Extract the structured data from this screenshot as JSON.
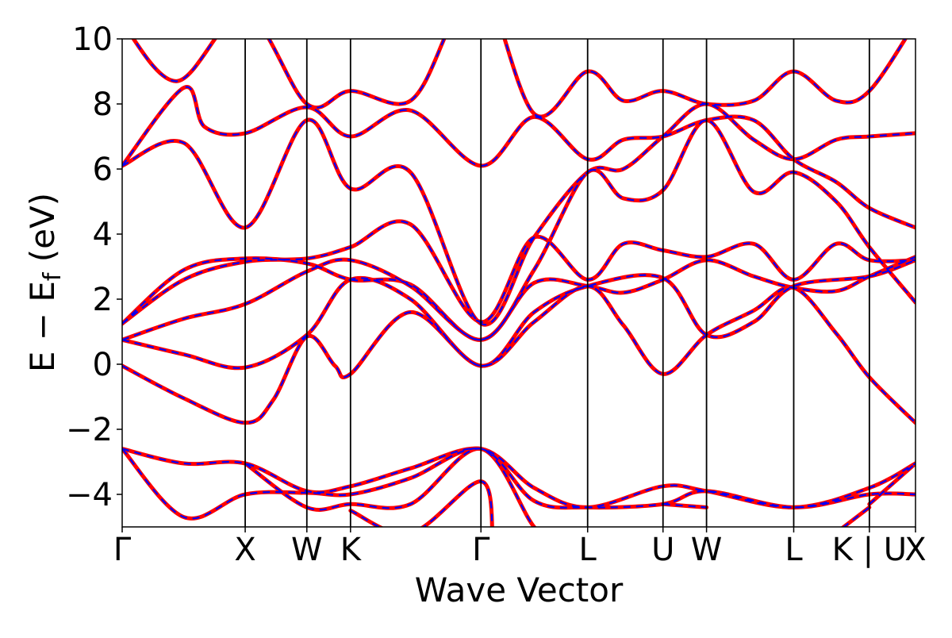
{
  "chart_data": {
    "type": "line",
    "xlabel": "Wave Vector",
    "ylabel": "E − E",
    "ylabel_sub": "f",
    "ylabel_unit": " (eV)",
    "ylim": [
      -5,
      10
    ],
    "yticks": [
      10,
      8,
      6,
      4,
      2,
      0,
      -2,
      -4
    ],
    "ytick_labels": [
      "10",
      "8",
      "6",
      "4",
      "2",
      "0",
      "−2",
      "−4"
    ],
    "path_length": 5.778,
    "kpoints": [
      {
        "label": "Γ",
        "pos": 0.0
      },
      {
        "label": "X",
        "pos": 0.896
      },
      {
        "label": "W",
        "pos": 1.345
      },
      {
        "label": "K",
        "pos": 1.663
      },
      {
        "label": "Γ",
        "pos": 2.613
      },
      {
        "label": "L",
        "pos": 3.39
      },
      {
        "label": "U",
        "pos": 3.939
      },
      {
        "label": "W",
        "pos": 4.256
      },
      {
        "label": "L",
        "pos": 4.891
      },
      {
        "label": "K | U",
        "pos": 5.442
      },
      {
        "label": "X",
        "pos": 5.778
      }
    ],
    "grid": false,
    "series": [
      {
        "color": "#ff0000",
        "style": "solid",
        "width": 5
      },
      {
        "color": "#0000ff",
        "style": "dashed",
        "width": 2.2
      }
    ],
    "bands": [
      [
        [
          0.0,
          -0.05
        ],
        [
          0.45,
          -1.05
        ],
        [
          0.896,
          -1.8
        ],
        [
          1.1,
          -1.1
        ],
        [
          1.345,
          0.85
        ],
        [
          1.55,
          -0.05
        ],
        [
          1.663,
          -0.3
        ],
        [
          2.1,
          1.6
        ],
        [
          2.613,
          -0.05
        ],
        [
          3.0,
          1.3
        ],
        [
          3.39,
          2.4
        ],
        [
          3.65,
          1.2
        ],
        [
          3.939,
          -0.3
        ],
        [
          4.256,
          0.9
        ],
        [
          4.6,
          1.65
        ],
        [
          4.891,
          2.35
        ],
        [
          5.2,
          0.95
        ],
        [
          5.442,
          -0.4
        ],
        [
          5.778,
          -1.8
        ]
      ],
      [
        [
          0.0,
          0.75
        ],
        [
          0.45,
          0.3
        ],
        [
          0.896,
          -0.1
        ],
        [
          1.345,
          0.9
        ],
        [
          1.663,
          2.6
        ],
        [
          2.1,
          2.0
        ],
        [
          2.613,
          -0.05
        ],
        [
          3.0,
          1.6
        ],
        [
          3.39,
          2.4
        ],
        [
          3.939,
          2.65
        ],
        [
          4.256,
          0.9
        ],
        [
          4.6,
          1.3
        ],
        [
          4.891,
          2.4
        ],
        [
          5.442,
          2.7
        ],
        [
          5.778,
          3.2
        ]
      ],
      [
        [
          0.0,
          0.75
        ],
        [
          0.45,
          1.4
        ],
        [
          0.896,
          1.85
        ],
        [
          1.345,
          2.85
        ],
        [
          1.663,
          3.2
        ],
        [
          2.1,
          2.4
        ],
        [
          2.613,
          0.75
        ],
        [
          3.0,
          2.5
        ],
        [
          3.39,
          2.4
        ],
        [
          3.65,
          2.2
        ],
        [
          3.939,
          2.6
        ],
        [
          4.256,
          3.2
        ],
        [
          4.6,
          2.7
        ],
        [
          4.891,
          2.35
        ],
        [
          5.2,
          2.25
        ],
        [
          5.442,
          2.7
        ],
        [
          5.778,
          3.3
        ]
      ],
      [
        [
          0.0,
          1.25
        ],
        [
          0.45,
          2.6
        ],
        [
          0.896,
          3.15
        ],
        [
          1.345,
          3.25
        ],
        [
          1.663,
          3.6
        ],
        [
          2.1,
          4.3
        ],
        [
          2.613,
          1.3
        ],
        [
          3.0,
          3.9
        ],
        [
          3.39,
          2.6
        ],
        [
          3.65,
          3.7
        ],
        [
          3.939,
          3.5
        ],
        [
          4.256,
          3.3
        ],
        [
          4.6,
          3.7
        ],
        [
          4.891,
          2.6
        ],
        [
          5.2,
          3.7
        ],
        [
          5.442,
          3.2
        ],
        [
          5.778,
          3.2
        ]
      ],
      [
        [
          0.0,
          1.25
        ],
        [
          0.45,
          2.9
        ],
        [
          0.896,
          3.25
        ],
        [
          1.345,
          3.1
        ],
        [
          1.663,
          2.6
        ],
        [
          2.1,
          2.45
        ],
        [
          2.613,
          0.75
        ],
        [
          3.0,
          2.9
        ],
        [
          3.39,
          5.9
        ],
        [
          3.65,
          5.1
        ],
        [
          3.939,
          5.35
        ],
        [
          4.256,
          7.5
        ],
        [
          4.6,
          5.3
        ],
        [
          4.891,
          5.9
        ],
        [
          5.2,
          5.0
        ],
        [
          5.442,
          3.6
        ],
        [
          5.778,
          1.9
        ]
      ],
      [
        [
          0.0,
          6.1
        ],
        [
          0.45,
          6.8
        ],
        [
          0.896,
          4.2
        ],
        [
          1.345,
          7.5
        ],
        [
          1.663,
          5.4
        ],
        [
          2.1,
          5.9
        ],
        [
          2.613,
          1.25
        ],
        [
          3.0,
          3.9
        ],
        [
          3.39,
          5.9
        ],
        [
          3.65,
          6.0
        ],
        [
          3.939,
          7.0
        ],
        [
          4.256,
          8.0
        ],
        [
          4.6,
          6.9
        ],
        [
          4.891,
          6.3
        ],
        [
          5.2,
          6.9
        ],
        [
          5.442,
          7.0
        ],
        [
          5.778,
          7.1
        ]
      ],
      [
        [
          0.0,
          6.1
        ],
        [
          0.45,
          8.5
        ],
        [
          0.6,
          7.3
        ],
        [
          0.896,
          7.1
        ],
        [
          1.345,
          7.9
        ],
        [
          1.663,
          7.0
        ],
        [
          2.1,
          7.8
        ],
        [
          2.613,
          6.1
        ],
        [
          3.0,
          7.6
        ],
        [
          3.39,
          6.3
        ],
        [
          3.65,
          6.9
        ],
        [
          3.939,
          7.0
        ],
        [
          4.256,
          7.5
        ],
        [
          4.6,
          7.5
        ],
        [
          4.891,
          6.3
        ],
        [
          5.2,
          5.6
        ],
        [
          5.442,
          4.8
        ],
        [
          5.778,
          4.2
        ]
      ],
      [
        [
          0.0,
          10.5
        ],
        [
          0.4,
          8.7
        ],
        [
          0.896,
          10.8
        ],
        [
          1.345,
          8.0
        ],
        [
          1.663,
          8.4
        ],
        [
          2.1,
          8.1
        ],
        [
          2.4,
          10.5
        ],
        [
          2.613,
          12
        ],
        [
          3.0,
          7.7
        ],
        [
          3.39,
          9.0
        ],
        [
          3.65,
          8.1
        ],
        [
          3.939,
          8.4
        ],
        [
          4.256,
          8.0
        ],
        [
          4.6,
          8.1
        ],
        [
          4.891,
          9.0
        ],
        [
          5.2,
          8.1
        ],
        [
          5.442,
          8.4
        ],
        [
          5.778,
          10.5
        ]
      ],
      [
        [
          0.0,
          -2.6
        ],
        [
          0.45,
          -3.05
        ],
        [
          0.896,
          -3.05
        ],
        [
          1.345,
          -3.9
        ],
        [
          1.663,
          -3.75
        ],
        [
          2.1,
          -3.2
        ],
        [
          2.613,
          -2.6
        ],
        [
          3.0,
          -3.8
        ],
        [
          3.39,
          -4.4
        ],
        [
          3.939,
          -3.75
        ],
        [
          4.256,
          -3.9
        ],
        [
          4.891,
          -4.4
        ],
        [
          5.442,
          -3.8
        ],
        [
          5.778,
          -3.05
        ]
      ],
      [
        [
          0.0,
          -2.6
        ],
        [
          0.45,
          -4.7
        ],
        [
          0.896,
          -4.0
        ],
        [
          1.345,
          -3.95
        ],
        [
          1.663,
          -4.0
        ],
        [
          2.1,
          -3.5
        ],
        [
          2.613,
          -2.6
        ],
        [
          3.0,
          -4.2
        ],
        [
          3.39,
          -4.4
        ],
        [
          3.939,
          -4.3
        ],
        [
          4.256,
          -3.9
        ],
        [
          4.891,
          -4.4
        ],
        [
          5.442,
          -4.0
        ],
        [
          5.778,
          -4.0
        ]
      ],
      [
        [
          0.896,
          -3.05
        ],
        [
          1.345,
          -4.4
        ],
        [
          1.663,
          -4.3
        ],
        [
          2.1,
          -4.3
        ],
        [
          2.613,
          -2.6
        ],
        [
          3.0,
          -5.0
        ],
        [
          3.2,
          -5.6
        ]
      ],
      [
        [
          1.663,
          -4.5
        ],
        [
          2.1,
          -5.2
        ],
        [
          2.613,
          -3.6
        ],
        [
          2.7,
          -5.4
        ]
      ],
      [
        [
          3.939,
          -4.3
        ],
        [
          4.256,
          -4.4
        ]
      ],
      [
        [
          5.442,
          -4.3
        ],
        [
          5.778,
          -3.05
        ]
      ],
      [
        [
          5.1,
          -5.5
        ],
        [
          5.442,
          -4.4
        ]
      ]
    ]
  }
}
